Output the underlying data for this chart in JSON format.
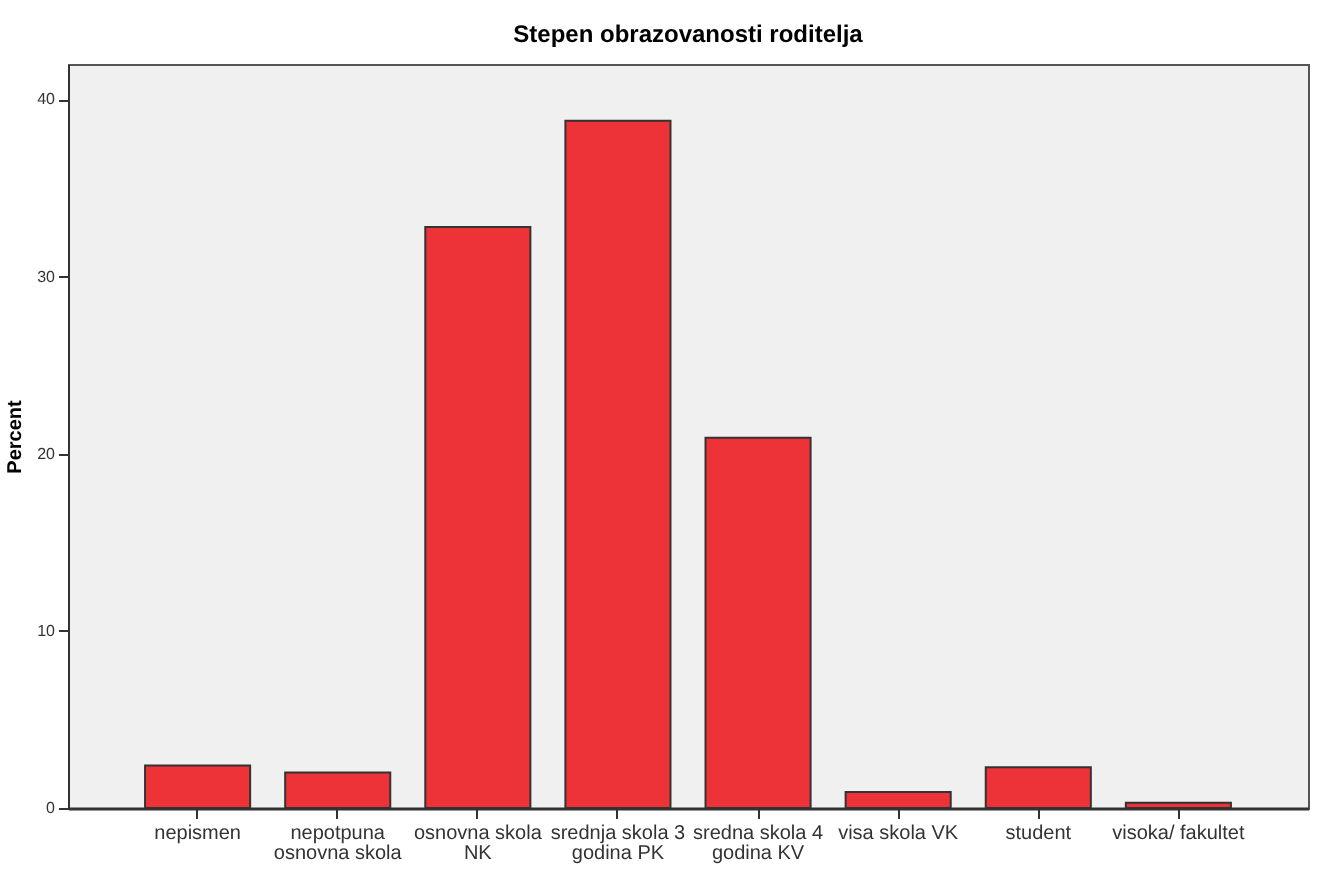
{
  "chart_data": {
    "type": "bar",
    "title": "Stepen obrazovanosti roditelja",
    "ylabel": "Percent",
    "categories": [
      "nepismen",
      "nepotpuna\nosnovna skola",
      "osnovna skola\nNK",
      "srednja skola 3\ngodina PK",
      "sredna skola 4\ngodina KV",
      "visa skola VK",
      "student",
      "visoka/ fakultet"
    ],
    "values": [
      2.4,
      2.0,
      32.8,
      38.8,
      20.9,
      0.9,
      2.3,
      0.3
    ],
    "color": "#ee3338",
    "ylim": [
      0,
      42
    ],
    "yticks": [
      0,
      10,
      20,
      30,
      40
    ],
    "grid": false
  }
}
